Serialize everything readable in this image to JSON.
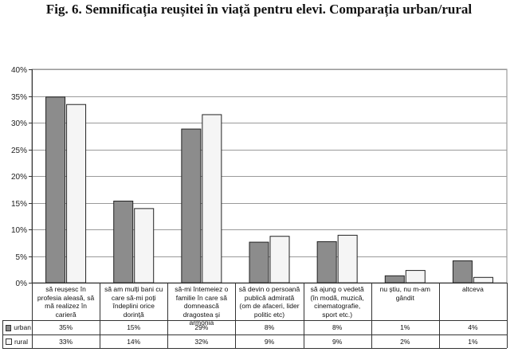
{
  "figure": {
    "title": "Fig. 6.  Semnificația reușitei în viață pentru elevi. Comparația urban/rural"
  },
  "chart_data": {
    "type": "bar",
    "title": "",
    "xlabel": "",
    "ylabel": "",
    "ylim": [
      0,
      40
    ],
    "y_ticks": [
      "0%",
      "5%",
      "10%",
      "15%",
      "20%",
      "25%",
      "30%",
      "35%",
      "40%"
    ],
    "grid": "horizontal",
    "legend": "data-table-left",
    "categories": [
      "să reușesc în profesia aleasă, să mă realizez în carieră",
      "să am mulți bani cu care să-mi poți îndeplini orice dorință",
      "să-mi întemeiez o familie în care să domnească dragostea și armonia",
      "să devin o persoană publică admirată (om de afaceri, lider politic etc)",
      "să ajung o vedetă (în modă, muzică, cinematografie, sport etc.)",
      "nu știu, nu m-am gândit",
      "altceva"
    ],
    "series": [
      {
        "name": "urban",
        "color": "#8c8c8c",
        "values": [
          34.8,
          15.3,
          28.8,
          7.6,
          7.7,
          1.3,
          4.1
        ],
        "labels": [
          "35%",
          "15%",
          "29%",
          "8%",
          "8%",
          "1%",
          "4%"
        ]
      },
      {
        "name": "rural",
        "color": "#f5f5f5",
        "values": [
          33.4,
          13.9,
          31.5,
          8.7,
          8.9,
          2.3,
          1.0
        ],
        "labels": [
          "33%",
          "14%",
          "32%",
          "9%",
          "9%",
          "2%",
          "1%"
        ]
      }
    ]
  }
}
